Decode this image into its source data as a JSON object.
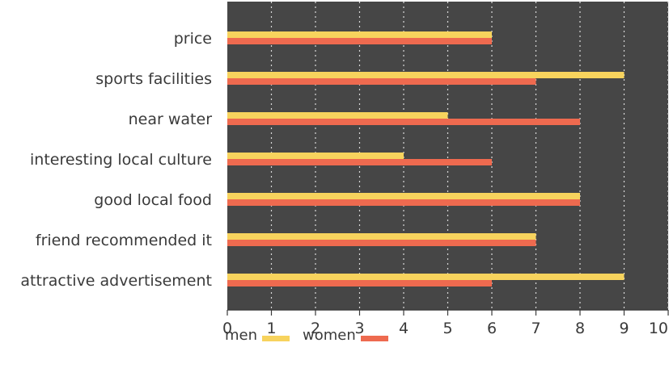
{
  "chart_data": {
    "type": "bar",
    "orientation": "horizontal",
    "title": "",
    "xlabel": "",
    "ylabel": "",
    "categories": [
      "price",
      "sports facilities",
      "near water",
      "interesting local culture",
      "good local food",
      "friend recommended it",
      "attractive advertisement"
    ],
    "series": [
      {
        "name": "men",
        "color": "#f7d35d",
        "values": [
          6,
          9,
          5,
          4,
          8,
          7,
          9
        ]
      },
      {
        "name": "women",
        "color": "#ee6a4f",
        "values": [
          6,
          7,
          8,
          6,
          8,
          7,
          6
        ]
      }
    ],
    "xlim": [
      0,
      10
    ],
    "xticks": [
      "0",
      "1",
      "2",
      "3",
      "4",
      "5",
      "6",
      "7",
      "8",
      "9",
      "10"
    ],
    "grid": true,
    "grid_style": "dotted vertical",
    "plot_background": "#464646",
    "legend_position": "bottom-left"
  }
}
